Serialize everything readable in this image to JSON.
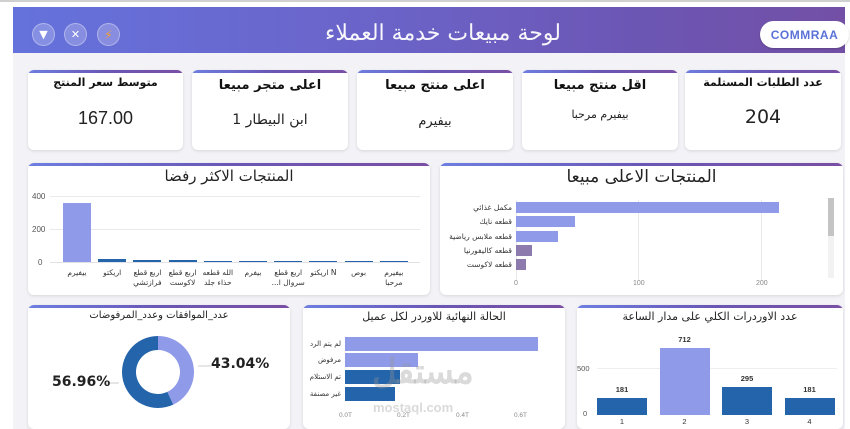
{
  "header": {
    "title": "لوحة مبيعات خدمة العملاء",
    "brand": "COMMRAA",
    "buttons": [
      {
        "icon": "triangle-down-icon",
        "glyph": "▼"
      },
      {
        "icon": "close-icon",
        "glyph": "✕"
      },
      {
        "icon": "lightning-icon",
        "glyph": "⚡"
      }
    ]
  },
  "kpis": [
    {
      "title": "متوسط سعر المنتج",
      "value": "167.00"
    },
    {
      "title": "اعلى متجر مبيعا",
      "value": "ابن البيطار 1"
    },
    {
      "title": "اعلى منتج مبيعا",
      "value": "بيفيرم"
    },
    {
      "title": "اقل منتج مبيعا",
      "value": "بيفيرم مرحبا"
    },
    {
      "title": "عدد الطلبات المستلمة",
      "value": "204"
    }
  ],
  "colors": {
    "light_bar": "#8f9ae8",
    "dark_bar": "#2364aa",
    "muted_bar": "#8c7bac",
    "header_start": "#6572dc",
    "header_end": "#7350a6"
  },
  "chart_data": [
    {
      "id": "most_rejected",
      "type": "bar",
      "title": "المنتجات الاكثر رفضا",
      "categories": [
        "بيفيرم",
        "اريكتو",
        "اربع قطع فرازتشي",
        "اربع قطع لاكوست",
        "الله قطعه حذاء جلد",
        "بيفرم",
        "اربع قطع سروال ا...",
        "N اريكتو",
        "بوص",
        "بيفيرم مرحبا"
      ],
      "values": [
        355,
        18,
        12,
        12,
        5,
        5,
        5,
        5,
        5,
        5
      ],
      "ylim": [
        0,
        400
      ],
      "yticks": [
        "400",
        "200",
        "0"
      ],
      "grid": true
    },
    {
      "id": "top_selling",
      "type": "bar",
      "orientation": "horizontal",
      "title": "المنتجات الاعلى مبيعا",
      "categories": [
        "مكمل غذائي",
        "قطعه نايك",
        "قطعه ملابس رياضية",
        "قطعه كاليفورنيا",
        "قطعه لاكوست"
      ],
      "values": [
        215,
        48,
        34,
        13,
        8
      ],
      "xlim": [
        0,
        250
      ],
      "xticks": [
        "0",
        "100",
        "200"
      ],
      "grid": true
    },
    {
      "id": "approvals_rejections",
      "type": "pie",
      "title": "عدد_الموافقات وعدد_المرفوضات",
      "slices": [
        {
          "label": "43.04%",
          "value": 43.04,
          "color": "#8f9ae8"
        },
        {
          "label": "56.96%",
          "value": 56.96,
          "color": "#2364aa"
        }
      ]
    },
    {
      "id": "final_order_status",
      "type": "bar",
      "orientation": "horizontal",
      "title": "الحالة النهائية للاوردر لكل عميل",
      "categories": [
        "لم يتم الرد",
        "مرفوض",
        "تم الاستلام",
        "غير مصنفة"
      ],
      "values": [
        0.66,
        0.25,
        0.19,
        0.17
      ],
      "xticks": [
        "0.0T",
        "0.2T",
        "0.4T",
        "0.6T"
      ],
      "xlim": [
        0,
        0.75
      ]
    },
    {
      "id": "orders_by_hour",
      "type": "bar",
      "title": "عدد الاوردرات الكلي على مدار الساعة",
      "categories": [
        "1",
        "2",
        "3",
        "4"
      ],
      "values": [
        181,
        712,
        295,
        181
      ],
      "data_labels": [
        "181",
        "712",
        "295",
        "181"
      ],
      "yticks": [
        "500",
        "0"
      ],
      "ylim": [
        0,
        780
      ]
    }
  ],
  "watermark": {
    "arabic": "مستقل",
    "latin": "mostaql.com"
  }
}
